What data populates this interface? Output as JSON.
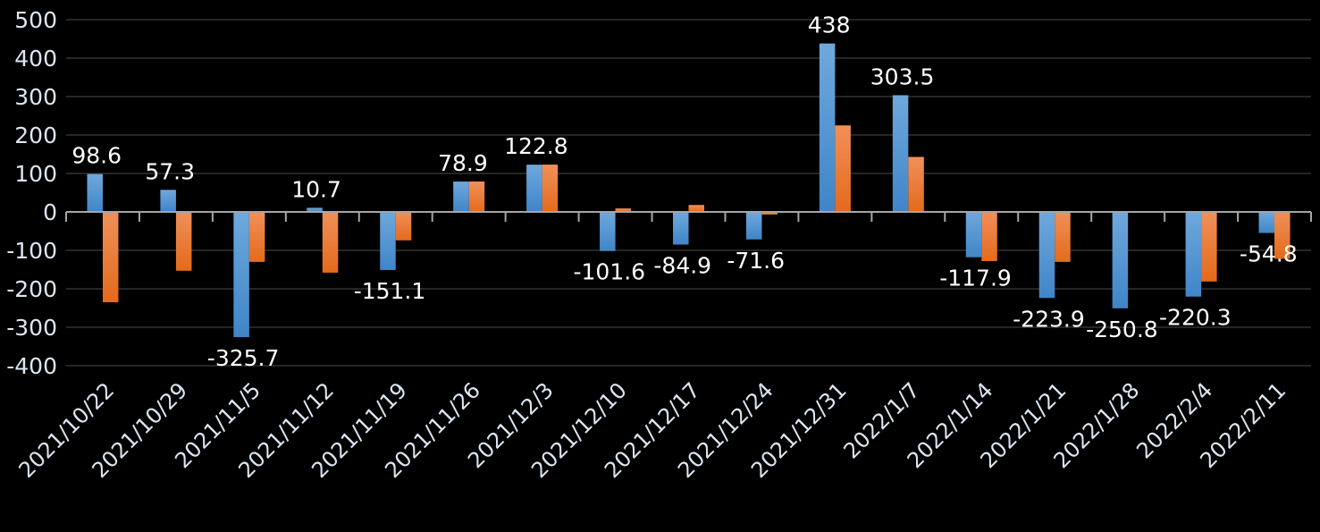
{
  "chart_data": {
    "type": "bar",
    "title": "",
    "xlabel": "",
    "ylabel": "",
    "ylim": [
      -400,
      500
    ],
    "yticks": [
      -400,
      -300,
      -200,
      -100,
      0,
      100,
      200,
      300,
      400,
      500
    ],
    "grid": true,
    "legend": "none",
    "categories": [
      "2021/10/22",
      "2021/10/29",
      "2021/11/5",
      "2021/11/12",
      "2021/11/19",
      "2021/11/26",
      "2021/12/3",
      "2021/12/10",
      "2021/12/17",
      "2021/12/24",
      "2021/12/31",
      "2022/1/7",
      "2022/1/14",
      "2022/1/21",
      "2022/1/28",
      "2022/2/4",
      "2022/2/11"
    ],
    "series": [
      {
        "color": "#5b9bd5",
        "labeled": true,
        "values": [
          98.6,
          57.3,
          -325.7,
          10.7,
          -151.1,
          78.9,
          122.8,
          -101.6,
          -84.9,
          -71.6,
          438,
          303.5,
          -117.9,
          -223.9,
          -250.8,
          -220.3,
          -54.8
        ]
      },
      {
        "color": "#ed7d31",
        "labeled": false,
        "values": [
          -235,
          -153,
          -130,
          -158,
          -74,
          79,
          123,
          9,
          18,
          -7,
          225,
          143,
          -128,
          -130,
          0,
          -181,
          -122
        ]
      }
    ],
    "colors": {
      "background": "#000000",
      "text": "#ffffff",
      "axis_labels": "#dce6f2",
      "grid": "#262626"
    }
  }
}
